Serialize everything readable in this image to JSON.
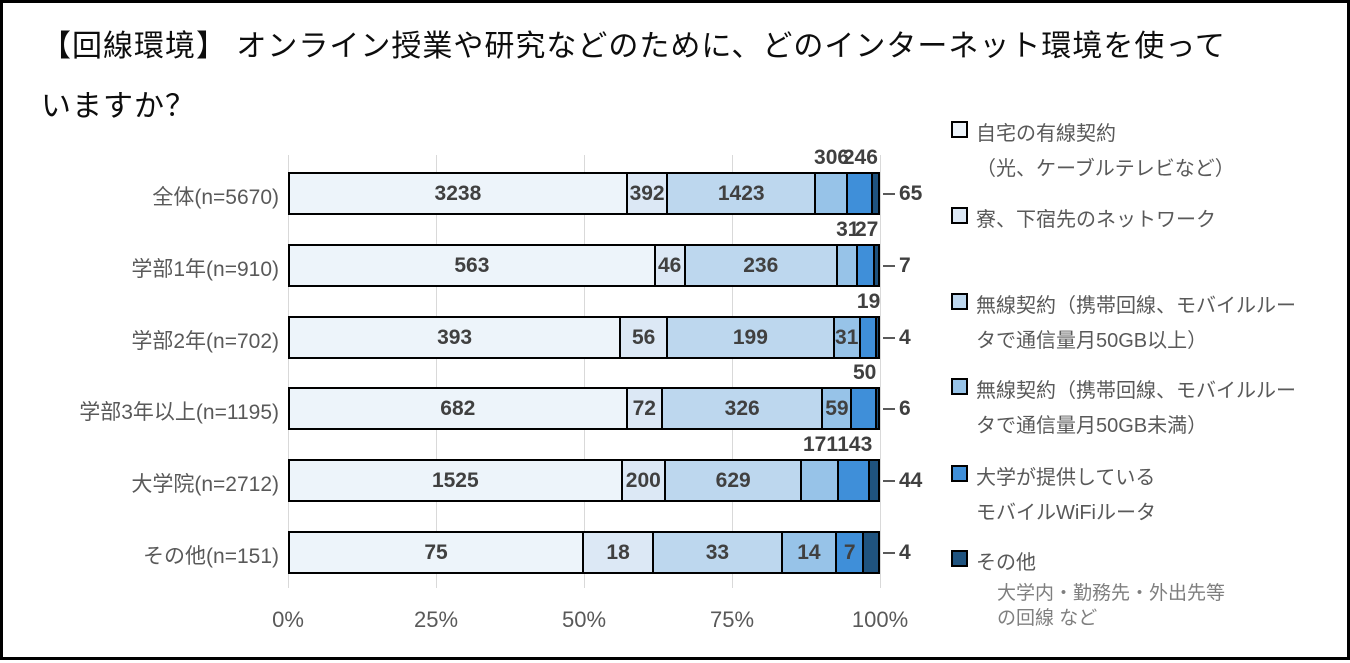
{
  "title": {
    "lines": [
      "【回線環境】 オンライン授業や研究などのために、どのインターネット環境を使って",
      "いますか？"
    ]
  },
  "chart_data": {
    "type": "bar",
    "orientation": "horizontal",
    "stacked": "100-percent",
    "title": "【回線環境】 オンライン授業や研究などのために、どのインターネット環境を使っていますか？",
    "x_axis": {
      "ticks": [
        "0%",
        "25%",
        "50%",
        "75%",
        "100%"
      ],
      "range_percent": [
        0,
        100
      ],
      "gridlines": true
    },
    "legend_position": "right",
    "series_names": [
      "自宅の有線契約（光、ケーブルテレビなど）",
      "寮、下宿先のネットワーク",
      "無線契約（携帯回線、モバイルルータで通信量月50GB以上）",
      "無線契約（携帯回線、モバイルルータで通信量月50GB未満）",
      "大学が提供しているモバイルWiFiルータ",
      "その他"
    ],
    "series_colors": [
      "#EDF4FA",
      "#DCE8F5",
      "#BDD7EE",
      "#97C3E8",
      "#3F8FD9",
      "#1F537F"
    ],
    "categories": [
      "全体(n=5670)",
      "学部1年(n=910)",
      "学部2年(n=702)",
      "学部3年以上(n=1195)",
      "大学院(n=2712)",
      "その他(n=151)"
    ],
    "rows": [
      {
        "label": "全体(n=5670)",
        "values": [
          3238,
          392,
          1423,
          306,
          246,
          65
        ],
        "placements": [
          "inside",
          "inside",
          "inside",
          "above",
          "above",
          "right"
        ]
      },
      {
        "label": "学部1年(n=910)",
        "values": [
          563,
          46,
          236,
          31,
          27,
          7
        ],
        "placements": [
          "inside",
          "inside",
          "inside",
          "above",
          "above",
          "right"
        ]
      },
      {
        "label": "学部2年(n=702)",
        "values": [
          393,
          56,
          199,
          31,
          19,
          4
        ],
        "placements": [
          "inside",
          "inside",
          "inside",
          "inside",
          "above",
          "right"
        ]
      },
      {
        "label": "学部3年以上(n=1195)",
        "values": [
          682,
          72,
          326,
          59,
          50,
          6
        ],
        "placements": [
          "inside",
          "inside",
          "inside",
          "inside",
          "above",
          "right"
        ]
      },
      {
        "label": "大学院(n=2712)",
        "values": [
          1525,
          200,
          629,
          171,
          143,
          44
        ],
        "placements": [
          "inside",
          "inside",
          "inside",
          "above",
          "above",
          "right"
        ]
      },
      {
        "label": "その他(n=151)",
        "values": [
          75,
          18,
          33,
          14,
          7,
          4
        ],
        "placements": [
          "inside",
          "inside",
          "inside",
          "inside",
          "inside",
          "right"
        ]
      }
    ]
  },
  "legend": {
    "items": [
      {
        "lines": [
          "自宅の有線契約",
          "（光、ケーブルテレビなど）"
        ],
        "color": "#EDF4FA"
      },
      {
        "lines": [
          "寮、下宿先のネットワーク"
        ],
        "color": "#DCE8F5"
      },
      {
        "lines": [
          "無線契約（携帯回線、モバイルルー",
          "タで通信量月50GB以上）"
        ],
        "color": "#BDD7EE"
      },
      {
        "lines": [
          "無線契約（携帯回線、モバイルルー",
          "タで通信量月50GB未満）"
        ],
        "color": "#97C3E8"
      },
      {
        "lines": [
          "大学が提供している",
          "モバイルWiFiルータ"
        ],
        "color": "#3F8FD9"
      },
      {
        "lines": [
          "その他"
        ],
        "color": "#1F537F",
        "note": [
          "大学内・勤務先・外出先等",
          "の回線 など"
        ]
      }
    ]
  },
  "colors": {
    "frame_border": "#000000",
    "gridline": "#D9D9D9",
    "axis_text": "#595959",
    "value_text": "#404040",
    "legend_note_text": "#7F7F7F"
  }
}
